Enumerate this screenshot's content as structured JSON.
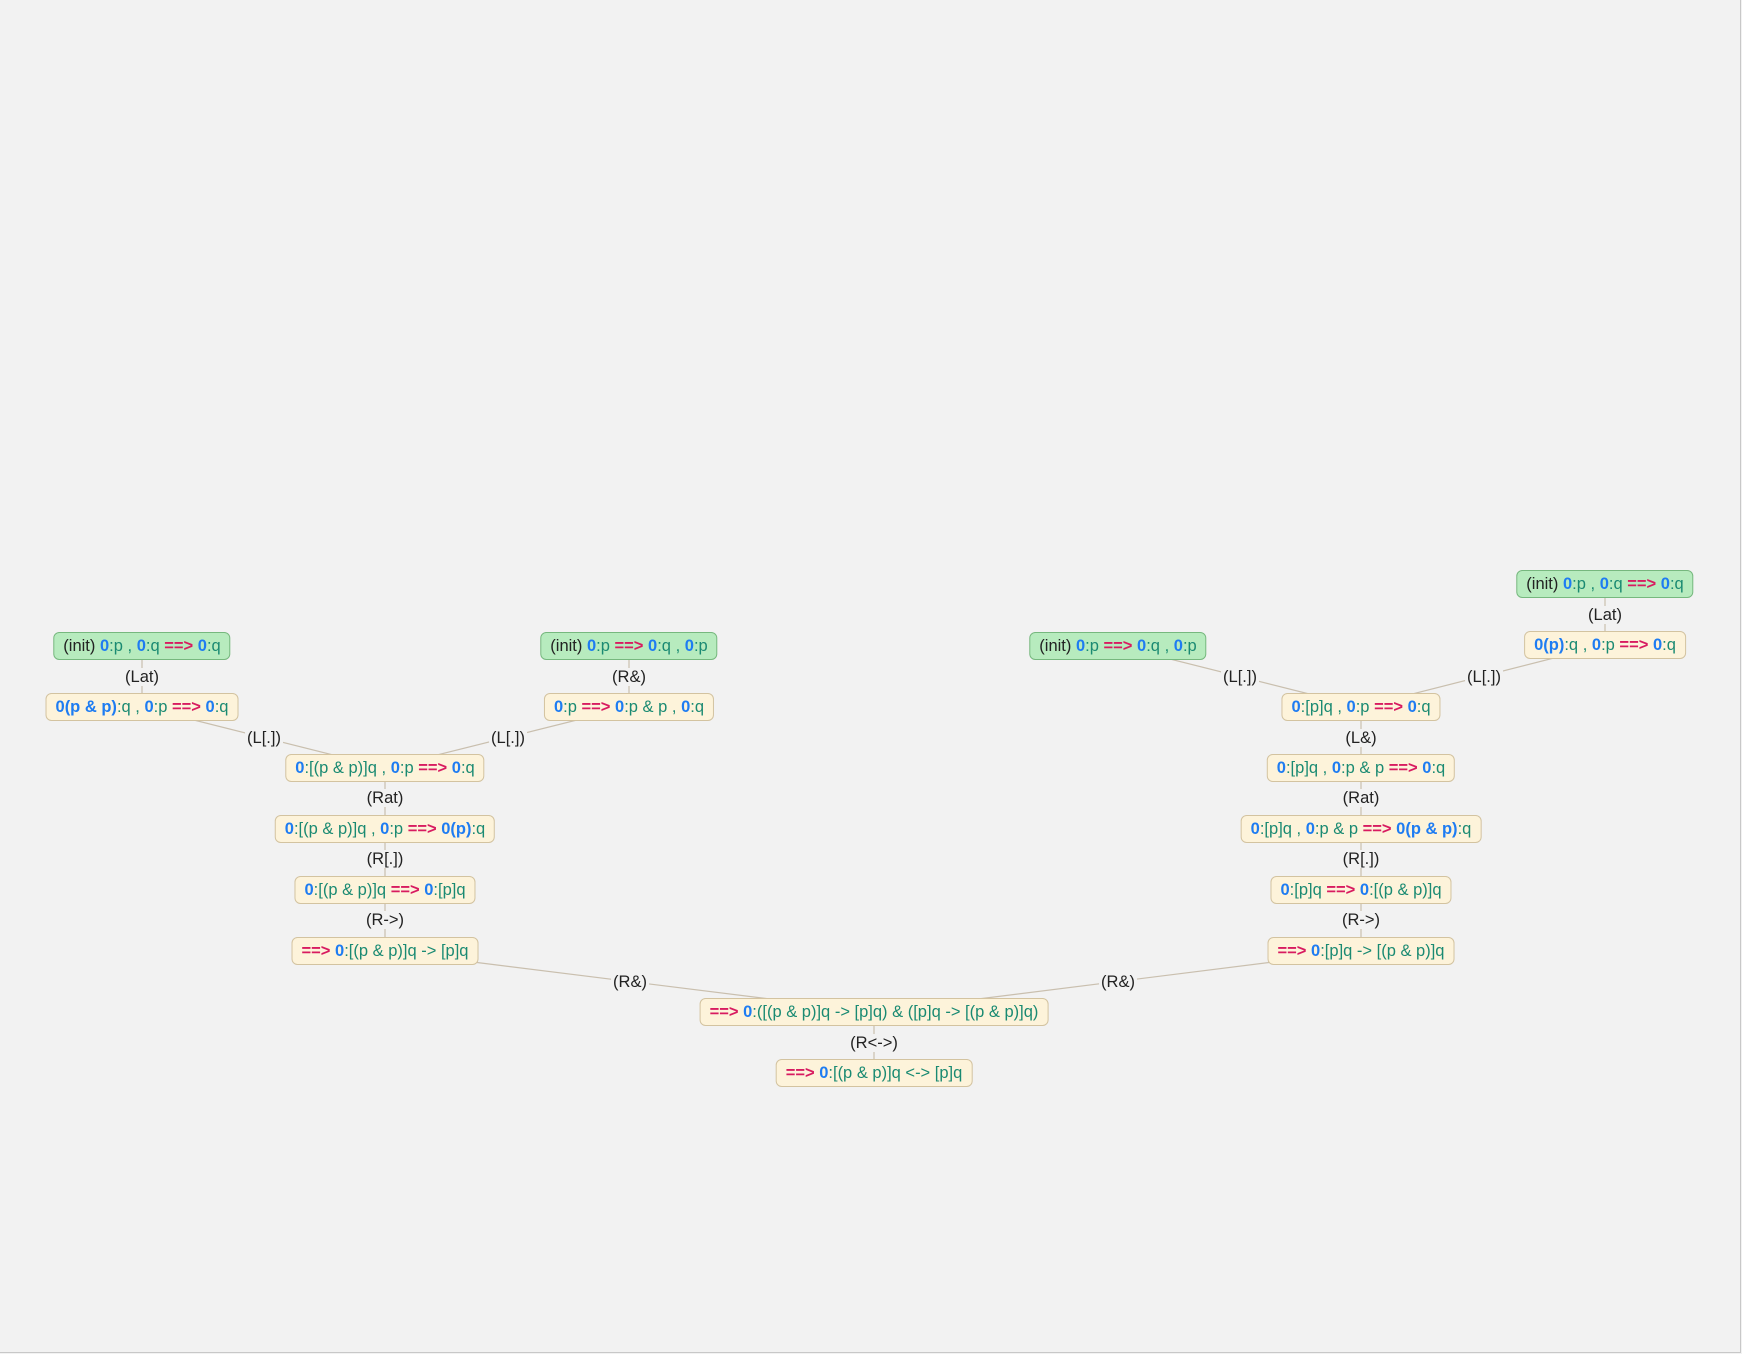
{
  "diagram": {
    "type": "proof-tree",
    "nodes": [
      {
        "id": "n1",
        "kind": "init",
        "parts": [
          [
            "tag",
            "(init)"
          ],
          [
            "t",
            " "
          ],
          [
            "lab",
            "0"
          ],
          [
            "f",
            ":p"
          ],
          [
            "t",
            " , "
          ],
          [
            "lab",
            "0"
          ],
          [
            "f",
            ":q"
          ],
          [
            "t",
            " "
          ],
          [
            "arr",
            "==>"
          ],
          [
            "t",
            " "
          ],
          [
            "lab",
            "0"
          ],
          [
            "f",
            ":q"
          ]
        ]
      },
      {
        "id": "n2",
        "kind": "init",
        "parts": [
          [
            "tag",
            "(init)"
          ],
          [
            "t",
            " "
          ],
          [
            "lab",
            "0"
          ],
          [
            "f",
            ":p"
          ],
          [
            "t",
            " "
          ],
          [
            "arr",
            "==>"
          ],
          [
            "t",
            " "
          ],
          [
            "lab",
            "0"
          ],
          [
            "f",
            ":q"
          ],
          [
            "t",
            " , "
          ],
          [
            "lab",
            "0"
          ],
          [
            "f",
            ":p"
          ]
        ]
      },
      {
        "id": "n3",
        "kind": "init",
        "parts": [
          [
            "tag",
            "(init)"
          ],
          [
            "t",
            " "
          ],
          [
            "lab",
            "0"
          ],
          [
            "f",
            ":p"
          ],
          [
            "t",
            " "
          ],
          [
            "arr",
            "==>"
          ],
          [
            "t",
            " "
          ],
          [
            "lab",
            "0"
          ],
          [
            "f",
            ":q"
          ],
          [
            "t",
            " , "
          ],
          [
            "lab",
            "0"
          ],
          [
            "f",
            ":p"
          ]
        ]
      },
      {
        "id": "n4",
        "kind": "init",
        "parts": [
          [
            "tag",
            "(init)"
          ],
          [
            "t",
            " "
          ],
          [
            "lab",
            "0"
          ],
          [
            "f",
            ":p"
          ],
          [
            "t",
            " , "
          ],
          [
            "lab",
            "0"
          ],
          [
            "f",
            ":q"
          ],
          [
            "t",
            " "
          ],
          [
            "arr",
            "==>"
          ],
          [
            "t",
            " "
          ],
          [
            "lab",
            "0"
          ],
          [
            "f",
            ":q"
          ]
        ]
      },
      {
        "id": "n5",
        "kind": "seq",
        "parts": [
          [
            "lab",
            "0(p & p)"
          ],
          [
            "f",
            ":q"
          ],
          [
            "t",
            " , "
          ],
          [
            "lab",
            "0"
          ],
          [
            "f",
            ":p"
          ],
          [
            "t",
            " "
          ],
          [
            "arr",
            "==>"
          ],
          [
            "t",
            " "
          ],
          [
            "lab",
            "0"
          ],
          [
            "f",
            ":q"
          ]
        ]
      },
      {
        "id": "n6",
        "kind": "seq",
        "parts": [
          [
            "lab",
            "0"
          ],
          [
            "f",
            ":p"
          ],
          [
            "t",
            " "
          ],
          [
            "arr",
            "==>"
          ],
          [
            "t",
            " "
          ],
          [
            "lab",
            "0"
          ],
          [
            "f",
            ":p & p"
          ],
          [
            "t",
            " , "
          ],
          [
            "lab",
            "0"
          ],
          [
            "f",
            ":q"
          ]
        ]
      },
      {
        "id": "n7",
        "kind": "seq",
        "parts": [
          [
            "lab",
            "0(p)"
          ],
          [
            "f",
            ":q"
          ],
          [
            "t",
            " , "
          ],
          [
            "lab",
            "0"
          ],
          [
            "f",
            ":p"
          ],
          [
            "t",
            " "
          ],
          [
            "arr",
            "==>"
          ],
          [
            "t",
            " "
          ],
          [
            "lab",
            "0"
          ],
          [
            "f",
            ":q"
          ]
        ]
      },
      {
        "id": "n8",
        "kind": "seq",
        "parts": [
          [
            "lab",
            "0"
          ],
          [
            "f",
            ":[(p & p)]q"
          ],
          [
            "t",
            " , "
          ],
          [
            "lab",
            "0"
          ],
          [
            "f",
            ":p"
          ],
          [
            "t",
            " "
          ],
          [
            "arr",
            "==>"
          ],
          [
            "t",
            " "
          ],
          [
            "lab",
            "0"
          ],
          [
            "f",
            ":q"
          ]
        ]
      },
      {
        "id": "n9",
        "kind": "seq",
        "parts": [
          [
            "lab",
            "0"
          ],
          [
            "f",
            ":[p]q"
          ],
          [
            "t",
            " , "
          ],
          [
            "lab",
            "0"
          ],
          [
            "f",
            ":p"
          ],
          [
            "t",
            " "
          ],
          [
            "arr",
            "==>"
          ],
          [
            "t",
            " "
          ],
          [
            "lab",
            "0"
          ],
          [
            "f",
            ":q"
          ]
        ]
      },
      {
        "id": "n10",
        "kind": "seq",
        "parts": [
          [
            "lab",
            "0"
          ],
          [
            "f",
            ":[p]q"
          ],
          [
            "t",
            " , "
          ],
          [
            "lab",
            "0"
          ],
          [
            "f",
            ":p & p"
          ],
          [
            "t",
            " "
          ],
          [
            "arr",
            "==>"
          ],
          [
            "t",
            " "
          ],
          [
            "lab",
            "0"
          ],
          [
            "f",
            ":q"
          ]
        ]
      },
      {
        "id": "n11",
        "kind": "seq",
        "parts": [
          [
            "lab",
            "0"
          ],
          [
            "f",
            ":[(p & p)]q"
          ],
          [
            "t",
            " , "
          ],
          [
            "lab",
            "0"
          ],
          [
            "f",
            ":p"
          ],
          [
            "t",
            " "
          ],
          [
            "arr",
            "==>"
          ],
          [
            "t",
            " "
          ],
          [
            "lab",
            "0(p)"
          ],
          [
            "f",
            ":q"
          ]
        ]
      },
      {
        "id": "n12",
        "kind": "seq",
        "parts": [
          [
            "lab",
            "0"
          ],
          [
            "f",
            ":[p]q"
          ],
          [
            "t",
            " , "
          ],
          [
            "lab",
            "0"
          ],
          [
            "f",
            ":p & p"
          ],
          [
            "t",
            " "
          ],
          [
            "arr",
            "==>"
          ],
          [
            "t",
            " "
          ],
          [
            "lab",
            "0(p & p)"
          ],
          [
            "f",
            ":q"
          ]
        ]
      },
      {
        "id": "n13",
        "kind": "seq",
        "parts": [
          [
            "lab",
            "0"
          ],
          [
            "f",
            ":[(p & p)]q"
          ],
          [
            "t",
            " "
          ],
          [
            "arr",
            "==>"
          ],
          [
            "t",
            " "
          ],
          [
            "lab",
            "0"
          ],
          [
            "f",
            ":[p]q"
          ]
        ]
      },
      {
        "id": "n14",
        "kind": "seq",
        "parts": [
          [
            "lab",
            "0"
          ],
          [
            "f",
            ":[p]q"
          ],
          [
            "t",
            " "
          ],
          [
            "arr",
            "==>"
          ],
          [
            "t",
            " "
          ],
          [
            "lab",
            "0"
          ],
          [
            "f",
            ":[(p & p)]q"
          ]
        ]
      },
      {
        "id": "n15",
        "kind": "seq",
        "parts": [
          [
            "arr",
            "==>"
          ],
          [
            "t",
            " "
          ],
          [
            "lab",
            "0"
          ],
          [
            "f",
            ":[(p & p)]q -> [p]q"
          ]
        ]
      },
      {
        "id": "n16",
        "kind": "seq",
        "parts": [
          [
            "arr",
            "==>"
          ],
          [
            "t",
            " "
          ],
          [
            "lab",
            "0"
          ],
          [
            "f",
            ":[p]q -> [(p & p)]q"
          ]
        ]
      },
      {
        "id": "n17",
        "kind": "seq",
        "parts": [
          [
            "arr",
            "==>"
          ],
          [
            "t",
            " "
          ],
          [
            "lab",
            "0"
          ],
          [
            "f",
            ":([(p & p)]q -> [p]q) & ([p]q -> [(p & p)]q)"
          ]
        ]
      },
      {
        "id": "n18",
        "kind": "seq",
        "parts": [
          [
            "arr",
            "==>"
          ],
          [
            "t",
            " "
          ],
          [
            "lab",
            "0"
          ],
          [
            "f",
            ":[(p & p)]q <-> [p]q"
          ]
        ]
      }
    ],
    "rules": [
      {
        "id": "r1",
        "text": "(Lat)"
      },
      {
        "id": "r2",
        "text": "(R&)"
      },
      {
        "id": "r3",
        "text": "(L[.])"
      },
      {
        "id": "r4",
        "text": "(Lat)"
      },
      {
        "id": "r5",
        "text": "(L[.])"
      },
      {
        "id": "r6",
        "text": "(L[.])"
      },
      {
        "id": "r7",
        "text": "(L[.])"
      },
      {
        "id": "r8",
        "text": "(L&)"
      },
      {
        "id": "r9",
        "text": "(Rat)"
      },
      {
        "id": "r10",
        "text": "(Rat)"
      },
      {
        "id": "r11",
        "text": "(R[.])"
      },
      {
        "id": "r12",
        "text": "(R[.])"
      },
      {
        "id": "r13",
        "text": "(R->)"
      },
      {
        "id": "r14",
        "text": "(R->)"
      },
      {
        "id": "r15",
        "text": "(R&)"
      },
      {
        "id": "r16",
        "text": "(R&)"
      },
      {
        "id": "r17",
        "text": "(R<->)"
      }
    ],
    "colors": {
      "background": "#f2f2f2",
      "sequent_fill": "#fdf3da",
      "sequent_border": "#d3c3a0",
      "init_fill": "#b7ebbe",
      "init_border": "#76b87e",
      "label": "#1e7cf2",
      "arrow": "#d81b60",
      "formula": "#1a8a72",
      "edge": "#c9bfae"
    }
  }
}
